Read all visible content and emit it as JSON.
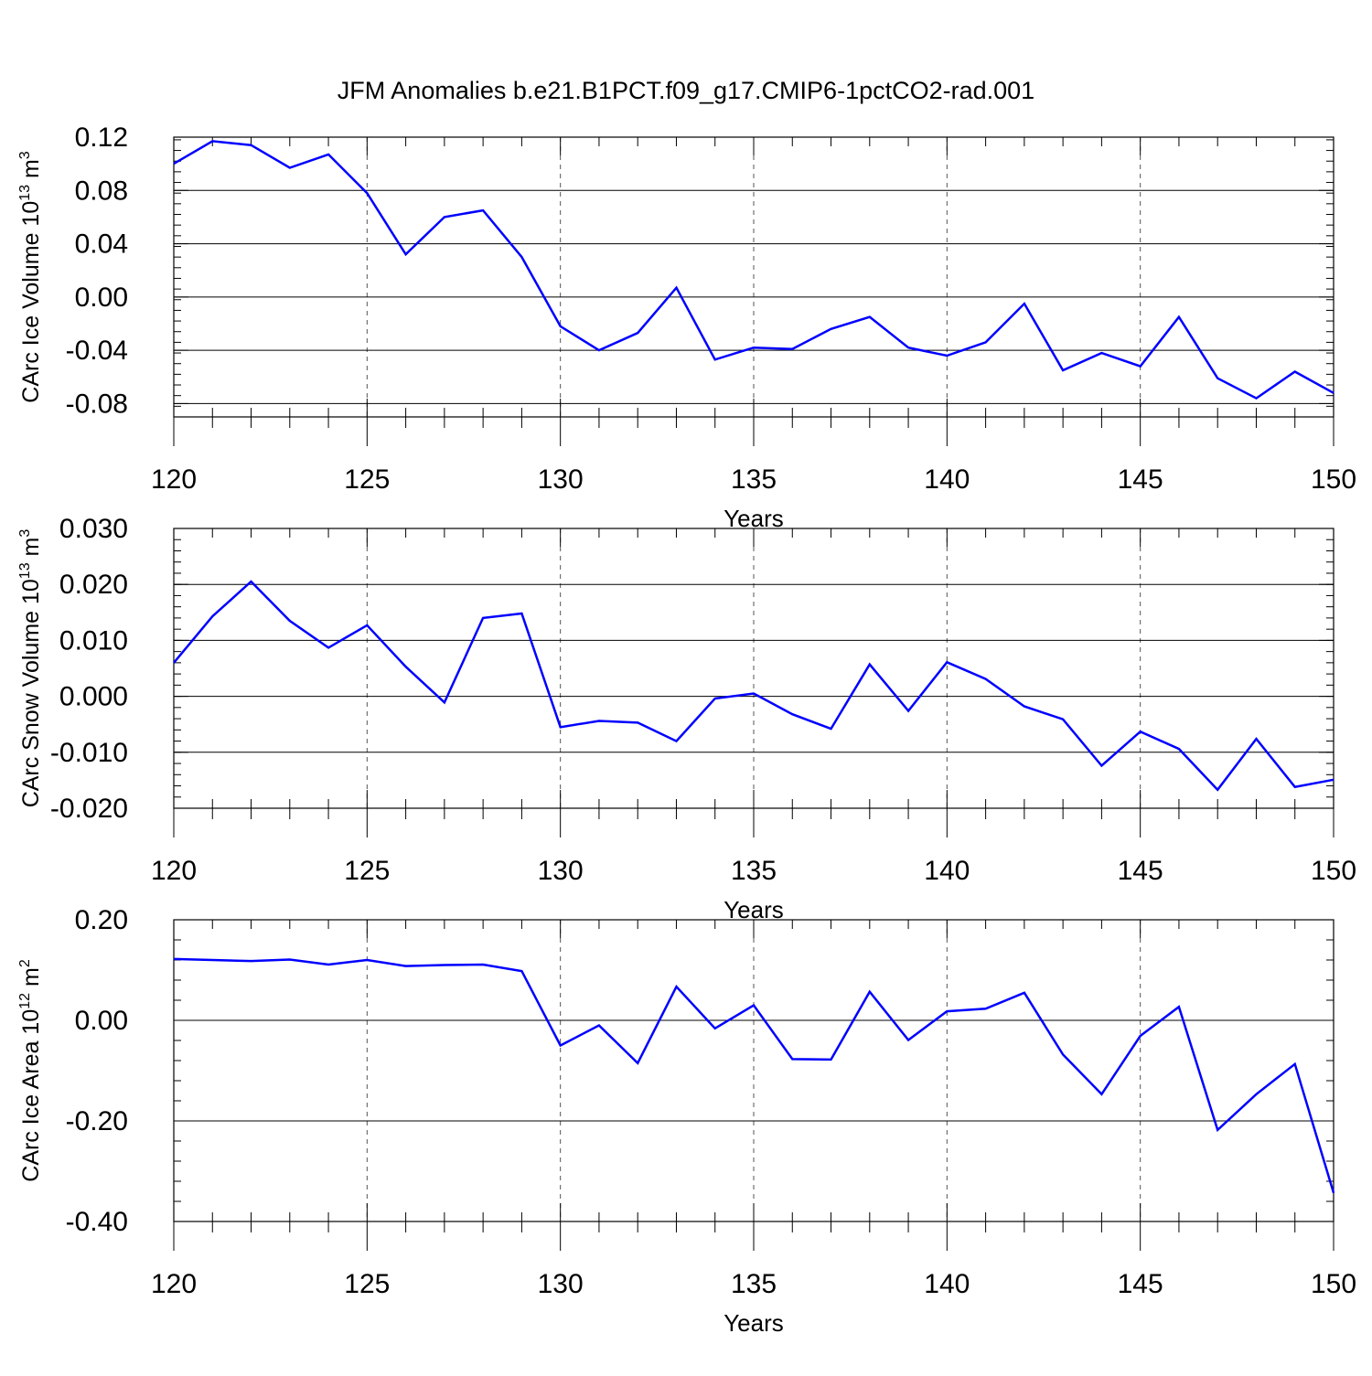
{
  "figure": {
    "title": "JFM Anomalies b.e21.B1PCT.f09_g17.CMIP6-1pctCO2-rad.001",
    "line_color": "#0000ff"
  },
  "chart_data": [
    {
      "type": "line",
      "title": "",
      "xlabel": "Years",
      "ylabel": {
        "prefix": "CArc Ice Volume 10",
        "exp": "13",
        "unit": " m",
        "unit_exp": "3"
      },
      "xlim": [
        120,
        150
      ],
      "ylim": [
        -0.09,
        0.12
      ],
      "xticks": [
        120,
        125,
        130,
        135,
        140,
        145,
        150
      ],
      "ytick_values": [
        -0.08,
        -0.04,
        0.0,
        0.04,
        0.08,
        0.12
      ],
      "ytick_labels": [
        "-0.08",
        "-0.04",
        "0.00",
        "0.04",
        "0.08",
        "0.12"
      ],
      "x": [
        120,
        121,
        122,
        123,
        124,
        125,
        126,
        127,
        128,
        129,
        130,
        131,
        132,
        133,
        134,
        135,
        136,
        137,
        138,
        139,
        140,
        141,
        142,
        143,
        144,
        145,
        146,
        147,
        148,
        149,
        150
      ],
      "series": [
        {
          "name": "CArc Ice Volume",
          "values": [
            0.1,
            0.117,
            0.114,
            0.097,
            0.107,
            0.078,
            0.032,
            0.06,
            0.065,
            0.03,
            -0.022,
            -0.04,
            -0.027,
            0.007,
            -0.047,
            -0.038,
            -0.039,
            -0.024,
            -0.015,
            -0.038,
            -0.044,
            -0.034,
            -0.005,
            -0.055,
            -0.042,
            -0.052,
            -0.015,
            -0.061,
            -0.076,
            -0.056,
            -0.072
          ]
        }
      ]
    },
    {
      "type": "line",
      "title": "",
      "xlabel": "Years",
      "ylabel": {
        "prefix": "CArc Snow Volume 10",
        "exp": "13",
        "unit": " m",
        "unit_exp": "3"
      },
      "xlim": [
        120,
        150
      ],
      "ylim": [
        -0.02,
        0.03
      ],
      "xticks": [
        120,
        125,
        130,
        135,
        140,
        145,
        150
      ],
      "ytick_values": [
        -0.02,
        -0.01,
        0.0,
        0.01,
        0.02,
        0.03
      ],
      "ytick_labels": [
        "-0.020",
        "-0.010",
        "0.000",
        "0.010",
        "0.020",
        "0.030"
      ],
      "x": [
        120,
        121,
        122,
        123,
        124,
        125,
        126,
        127,
        128,
        129,
        130,
        131,
        132,
        133,
        134,
        135,
        136,
        137,
        138,
        139,
        140,
        141,
        142,
        143,
        144,
        145,
        146,
        147,
        148,
        149,
        150
      ],
      "series": [
        {
          "name": "CArc Snow Volume",
          "values": [
            0.006,
            0.0143,
            0.0205,
            0.0135,
            0.0087,
            0.0127,
            0.0053,
            -0.0011,
            0.014,
            0.0148,
            -0.0055,
            -0.0044,
            -0.0047,
            -0.008,
            -0.0004,
            0.0005,
            -0.0032,
            -0.0058,
            0.0057,
            -0.0026,
            0.0061,
            0.0031,
            -0.0018,
            -0.0041,
            -0.0124,
            -0.0063,
            -0.0094,
            -0.0167,
            -0.0076,
            -0.0162,
            -0.0149
          ]
        }
      ]
    },
    {
      "type": "line",
      "title": "",
      "xlabel": "Years",
      "ylabel": {
        "prefix": "CArc Ice Area 10",
        "exp": "12",
        "unit": " m",
        "unit_exp": "2"
      },
      "xlim": [
        120,
        150
      ],
      "ylim": [
        -0.4,
        0.2
      ],
      "xticks": [
        120,
        125,
        130,
        135,
        140,
        145,
        150
      ],
      "ytick_values": [
        -0.4,
        -0.2,
        0.0,
        0.2
      ],
      "ytick_labels": [
        "-0.40",
        "-0.20",
        "0.00",
        "0.20"
      ],
      "x": [
        120,
        121,
        122,
        123,
        124,
        125,
        126,
        127,
        128,
        129,
        130,
        131,
        132,
        133,
        134,
        135,
        136,
        137,
        138,
        139,
        140,
        141,
        142,
        143,
        144,
        145,
        146,
        147,
        148,
        149,
        150
      ],
      "series": [
        {
          "name": "CArc Ice Area",
          "values": [
            0.122,
            0.12,
            0.118,
            0.121,
            0.111,
            0.12,
            0.108,
            0.11,
            0.111,
            0.098,
            -0.05,
            -0.01,
            -0.085,
            0.067,
            -0.016,
            0.03,
            -0.077,
            -0.078,
            0.057,
            -0.039,
            0.018,
            0.023,
            0.055,
            -0.068,
            -0.147,
            -0.031,
            0.027,
            -0.218,
            -0.147,
            -0.087,
            -0.343
          ]
        }
      ]
    }
  ]
}
